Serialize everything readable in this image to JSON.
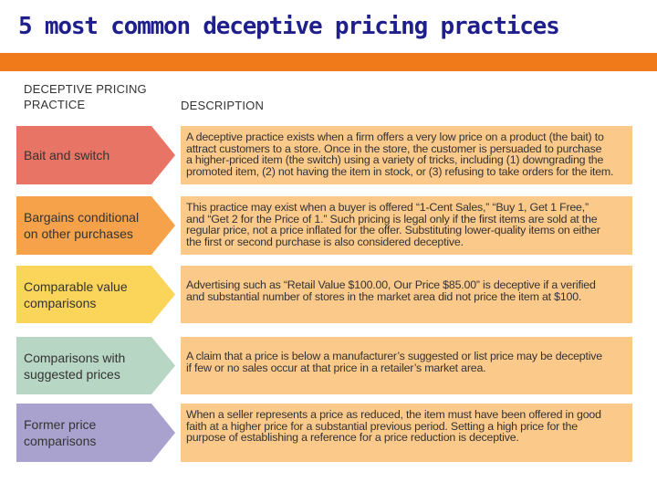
{
  "title": "5 most common deceptive pricing practices",
  "headers": {
    "practice_line1": "DECEPTIVE PRICING",
    "practice_line2": "PRACTICE",
    "description": "DESCRIPTION"
  },
  "colors": {
    "title": "#1e1e8c",
    "rule": "#f07a1a",
    "description_bg": "#fbc98a",
    "arrows": [
      "#e87466",
      "#f5a24a",
      "#fbd45a",
      "#b8d6c4",
      "#aaa2ce"
    ]
  },
  "rows": [
    {
      "practice_line1": "Bait and switch",
      "practice_line2": "",
      "description_lines": [
        "A deceptive practice exists when a firm offers a very low price on a product (the bait) to",
        "attract customers to a store.  Once in the store, the customer is persuaded to purchase",
        "a higher-priced item (the switch) using a variety of tricks, including (1) downgrading the",
        "promoted item, (2) not having the item in stock, or (3) refusing to take orders for the item."
      ]
    },
    {
      "practice_line1": "Bargains conditional",
      "practice_line2": "on other purchases",
      "description_lines": [
        "This practice may exist when a buyer is offered “1-Cent Sales,” “Buy 1, Get 1 Free,”",
        "and “Get 2 for the Price of 1.”  Such pricing is legal only if the first items are sold at the",
        "regular price, not a price inflated for the offer.  Substituting lower-quality items on either",
        "the first or second purchase is also considered deceptive."
      ]
    },
    {
      "practice_line1": "Comparable value",
      "practice_line2": "comparisons",
      "description_lines": [
        "Advertising such as “Retail Value $100.00, Our Price $85.00” is deceptive if a verified",
        "and substantial number of stores in the market area did not price the item at $100."
      ]
    },
    {
      "practice_line1": "Comparisons with",
      "practice_line2": "suggested prices",
      "description_lines": [
        "A claim that a price is below a manufacturer’s suggested or list price may be deceptive",
        "if few or no sales occur at that price in a retailer’s market area."
      ]
    },
    {
      "practice_line1": "Former price",
      "practice_line2": "comparisons",
      "description_lines": [
        "When a seller represents a price as reduced, the item must have been offered in good",
        "faith at a higher price for a substantial previous period.  Setting a high price for the",
        "purpose of establishing a reference for a price reduction is deceptive."
      ]
    }
  ]
}
